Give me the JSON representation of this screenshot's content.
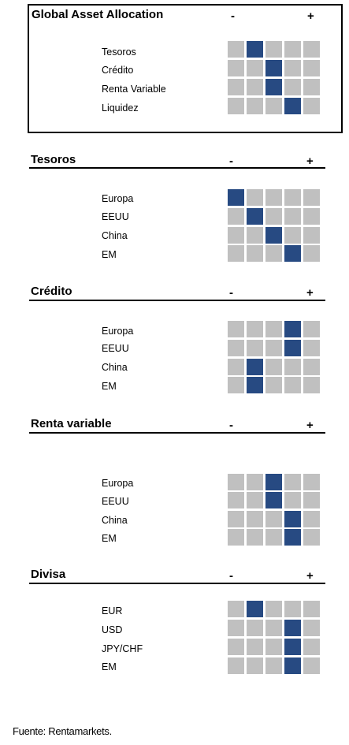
{
  "minus": "-",
  "plus": "+",
  "footer": "Fuente: Rentamarkets.",
  "sections": [
    {
      "title": "Global Asset Allocation",
      "rows": [
        {
          "label": "Tesoros",
          "level": 2
        },
        {
          "label": "Crédito",
          "level": 3
        },
        {
          "label": "Renta Variable",
          "level": 3
        },
        {
          "label": "Liquidez",
          "level": 4
        }
      ]
    },
    {
      "title": "Tesoros",
      "rows": [
        {
          "label": "Europa",
          "level": 1
        },
        {
          "label": "EEUU",
          "level": 2
        },
        {
          "label": "China",
          "level": 3
        },
        {
          "label": "EM",
          "level": 4
        }
      ]
    },
    {
      "title": "Crédito",
      "rows": [
        {
          "label": "Europa",
          "level": 4
        },
        {
          "label": "EEUU",
          "level": 4
        },
        {
          "label": "China",
          "level": 2
        },
        {
          "label": "EM",
          "level": 2
        }
      ]
    },
    {
      "title": "Renta variable",
      "rows": [
        {
          "label": "Europa",
          "level": 3
        },
        {
          "label": "EEUU",
          "level": 3
        },
        {
          "label": "China",
          "level": 4
        },
        {
          "label": "EM",
          "level": 4
        }
      ]
    },
    {
      "title": "Divisa",
      "rows": [
        {
          "label": "EUR",
          "level": 2
        },
        {
          "label": "USD",
          "level": 4
        },
        {
          "label": "JPY/CHF",
          "level": 4
        },
        {
          "label": "EM",
          "level": 4
        }
      ]
    }
  ],
  "scale_steps": 5,
  "colors": {
    "selected": "#274a82",
    "empty": "#c0c0c0"
  }
}
